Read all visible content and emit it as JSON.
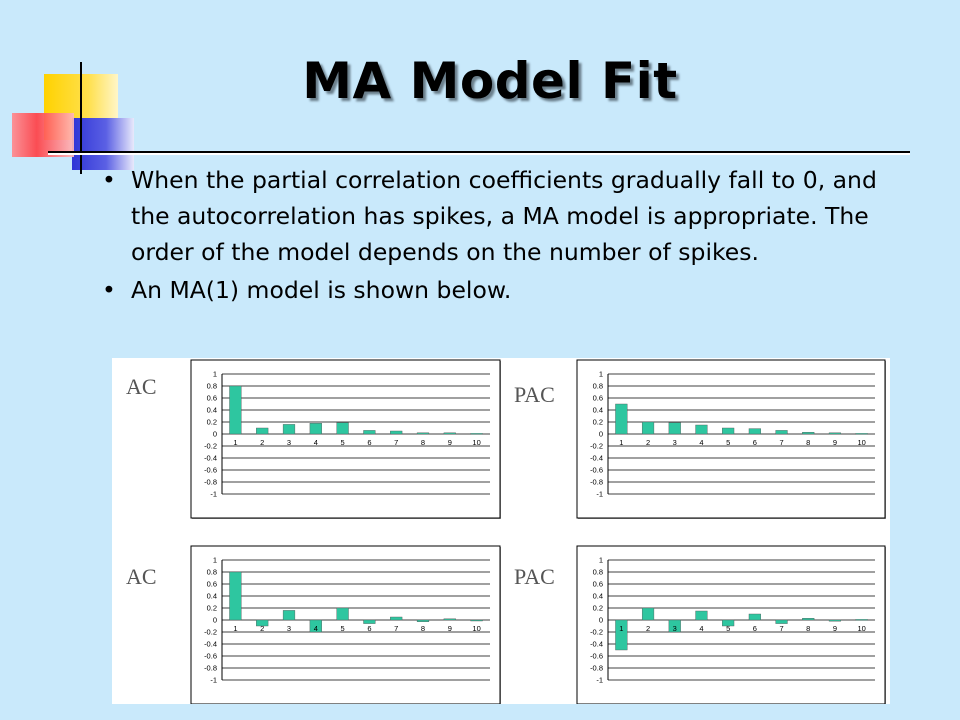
{
  "slide": {
    "title": "MA Model Fit",
    "bullets": [
      "When the partial correlation coefficients gradually fall to 0, and the autocorrelation has spikes, a MA model is appropriate. The order of the model depends on the number of spikes.",
      "An MA(1) model is shown below."
    ],
    "bullet_glyph": "•"
  },
  "colors": {
    "background": "#c9e9fb",
    "bar_fill": "#2ec6a0",
    "deco_yellow": "#ffd200",
    "deco_red": "#ff3f45",
    "deco_blue": "#2f35d6"
  },
  "chart_data": [
    {
      "type": "bar",
      "title": "AC",
      "categories": [
        "1",
        "2",
        "3",
        "4",
        "5",
        "6",
        "7",
        "8",
        "9",
        "10"
      ],
      "values": [
        0.8,
        0.1,
        0.16,
        0.18,
        0.19,
        0.06,
        0.05,
        0.02,
        0.02,
        0.01
      ],
      "ylim": [
        -1,
        1
      ],
      "yticks": [
        "1",
        "0.8",
        "0.6",
        "0.4",
        "0.2",
        "0",
        "-0.2",
        "-0.4",
        "-0.6",
        "-0.8",
        "-1"
      ],
      "grid": true
    },
    {
      "type": "bar",
      "title": "PAC",
      "categories": [
        "1",
        "2",
        "3",
        "4",
        "5",
        "6",
        "7",
        "8",
        "9",
        "10"
      ],
      "values": [
        0.5,
        0.2,
        0.19,
        0.15,
        0.1,
        0.09,
        0.06,
        0.03,
        0.02,
        0.01
      ],
      "ylim": [
        -1,
        1
      ],
      "yticks": [
        "1",
        "0.8",
        "0.6",
        "0.4",
        "0.2",
        "0",
        "-0.2",
        "-0.4",
        "-0.6",
        "-0.8",
        "-1"
      ],
      "grid": true
    },
    {
      "type": "bar",
      "title": "AC",
      "categories": [
        "1",
        "2",
        "3",
        "4",
        "5",
        "6",
        "7",
        "8",
        "9",
        "10"
      ],
      "values": [
        0.8,
        -0.1,
        0.16,
        -0.2,
        0.2,
        -0.06,
        0.05,
        -0.03,
        0.02,
        -0.01
      ],
      "ylim": [
        -1,
        1
      ],
      "yticks": [
        "1",
        "0.8",
        "0.6",
        "0.4",
        "0.2",
        "0",
        "-0.2",
        "-0.4",
        "-0.6",
        "-0.8",
        "-1"
      ],
      "grid": true
    },
    {
      "type": "bar",
      "title": "PAC",
      "categories": [
        "1",
        "2",
        "3",
        "4",
        "5",
        "6",
        "7",
        "8",
        "9",
        "10"
      ],
      "values": [
        -0.5,
        0.2,
        -0.2,
        0.15,
        -0.1,
        0.1,
        -0.06,
        0.03,
        -0.02,
        0.01
      ],
      "ylim": [
        -1,
        1
      ],
      "yticks": [
        "1",
        "0.8",
        "0.6",
        "0.4",
        "0.2",
        "0",
        "-0.2",
        "-0.4",
        "-0.6",
        "-0.8",
        "-1"
      ],
      "grid": true
    }
  ]
}
